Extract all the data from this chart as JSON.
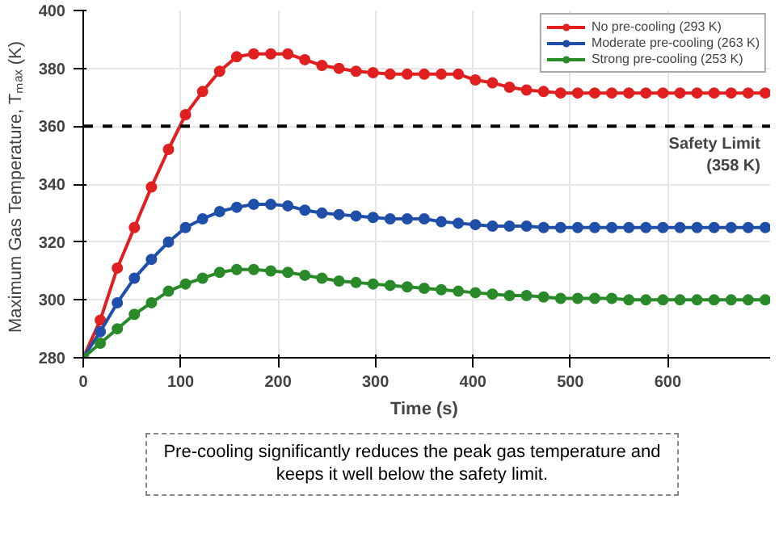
{
  "chart_data": {
    "type": "line",
    "xlabel": "Time  (s)",
    "ylabel": "Maximum Gas Temperature, Tₘₐₓ  (K)",
    "x": [
      0,
      17.5,
      35,
      52.5,
      70,
      87.5,
      105,
      122.5,
      140,
      157.5,
      175,
      192.5,
      210,
      227.5,
      245,
      262.5,
      280,
      297.5,
      315,
      332.5,
      350,
      367.5,
      385,
      402.5,
      420,
      437.5,
      455,
      472.5,
      490,
      507.5,
      525,
      542.5,
      560,
      577.5,
      595,
      612.5,
      630,
      647.5,
      665,
      682.5,
      700
    ],
    "series": [
      {
        "name": "No pre-cooling (293 K)",
        "color": "#e02020",
        "values": [
          280,
          293,
          311,
          325,
          339,
          352,
          364,
          372,
          379,
          384,
          385,
          385,
          385,
          383,
          381,
          380,
          379,
          378.5,
          378,
          378,
          378,
          378,
          378,
          376,
          375,
          373.5,
          372.5,
          372,
          371.5,
          371.5,
          371.5,
          371.5,
          371.5,
          371.5,
          371.5,
          371.5,
          371.5,
          371.5,
          371.5,
          371.5,
          371.5
        ]
      },
      {
        "name": "Moderate pre-cooling (263 K)",
        "color": "#1f4fa8",
        "values": [
          280,
          289,
          299,
          307.5,
          314,
          320,
          325,
          328,
          330.5,
          332,
          333,
          333,
          332.5,
          331,
          330,
          329.5,
          329,
          328.5,
          328,
          328,
          328,
          327,
          326.5,
          326,
          325.5,
          325.5,
          325.5,
          325,
          325,
          325,
          325,
          325,
          325,
          325,
          325,
          325,
          325,
          325,
          325,
          325,
          325
        ]
      },
      {
        "name": "Strong pre-cooling (253 K)",
        "color": "#2a8a2a",
        "values": [
          280,
          285,
          290,
          295,
          299,
          303,
          305.5,
          307.5,
          309.5,
          310.5,
          310.5,
          310,
          309.5,
          308.5,
          307.5,
          306.5,
          306,
          305.5,
          305,
          304.5,
          304,
          303.5,
          303,
          302.5,
          302,
          301.5,
          301.5,
          301,
          300.5,
          300.5,
          300.5,
          300.5,
          300,
          300,
          300,
          300,
          300,
          300,
          300,
          300,
          300
        ]
      }
    ],
    "xlim": [
      0,
      705
    ],
    "xticks": [
      0,
      100,
      200,
      300,
      400,
      500,
      600
    ],
    "ylim": [
      280,
      400
    ],
    "yticks": [
      280,
      300,
      320,
      340,
      360,
      380,
      400
    ],
    "ref_lines": [
      {
        "axis": "y",
        "value": 360,
        "label": "Safety Limit\n(358 K)",
        "color": "#000000",
        "line_style": "dashed"
      }
    ],
    "annotations": [
      "Pre-cooling significantly reduces the peak gas temperature and keeps it well below the safety limit."
    ],
    "grid": true,
    "legend": "top right",
    "marker": "circle",
    "line_style": "solid"
  }
}
